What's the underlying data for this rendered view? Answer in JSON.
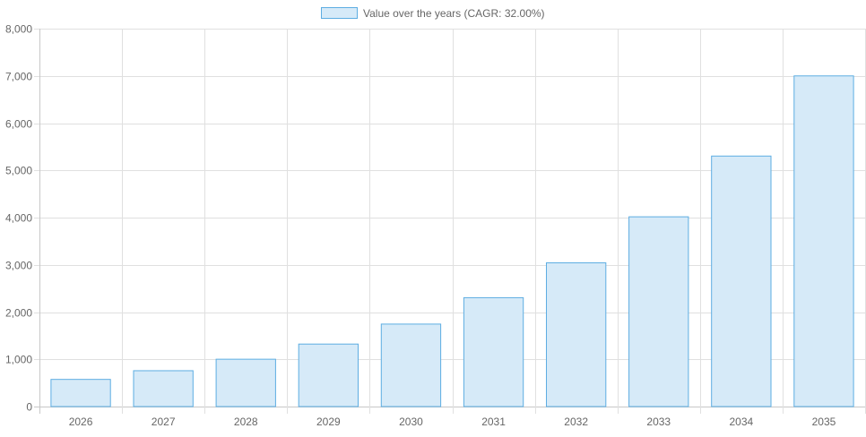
{
  "chart_data": {
    "type": "bar",
    "categories": [
      "2026",
      "2027",
      "2028",
      "2029",
      "2030",
      "2031",
      "2032",
      "2033",
      "2034",
      "2035"
    ],
    "series": [
      {
        "name": "Value over the years (CAGR: 32.00%)",
        "values": [
          575,
          759,
          1002,
          1323,
          1746,
          2305,
          3043,
          4017,
          5303,
          7000
        ]
      }
    ],
    "ylim": [
      0,
      8000
    ],
    "yticks": [
      "0",
      "1,000",
      "2,000",
      "3,000",
      "4,000",
      "5,000",
      "6,000",
      "7,000",
      "8,000"
    ],
    "grid": true,
    "legend": "top-center",
    "colors": {
      "bar_fill": "#d6eaf8",
      "bar_border": "#5dade2",
      "grid": "#e0e0e0"
    }
  }
}
